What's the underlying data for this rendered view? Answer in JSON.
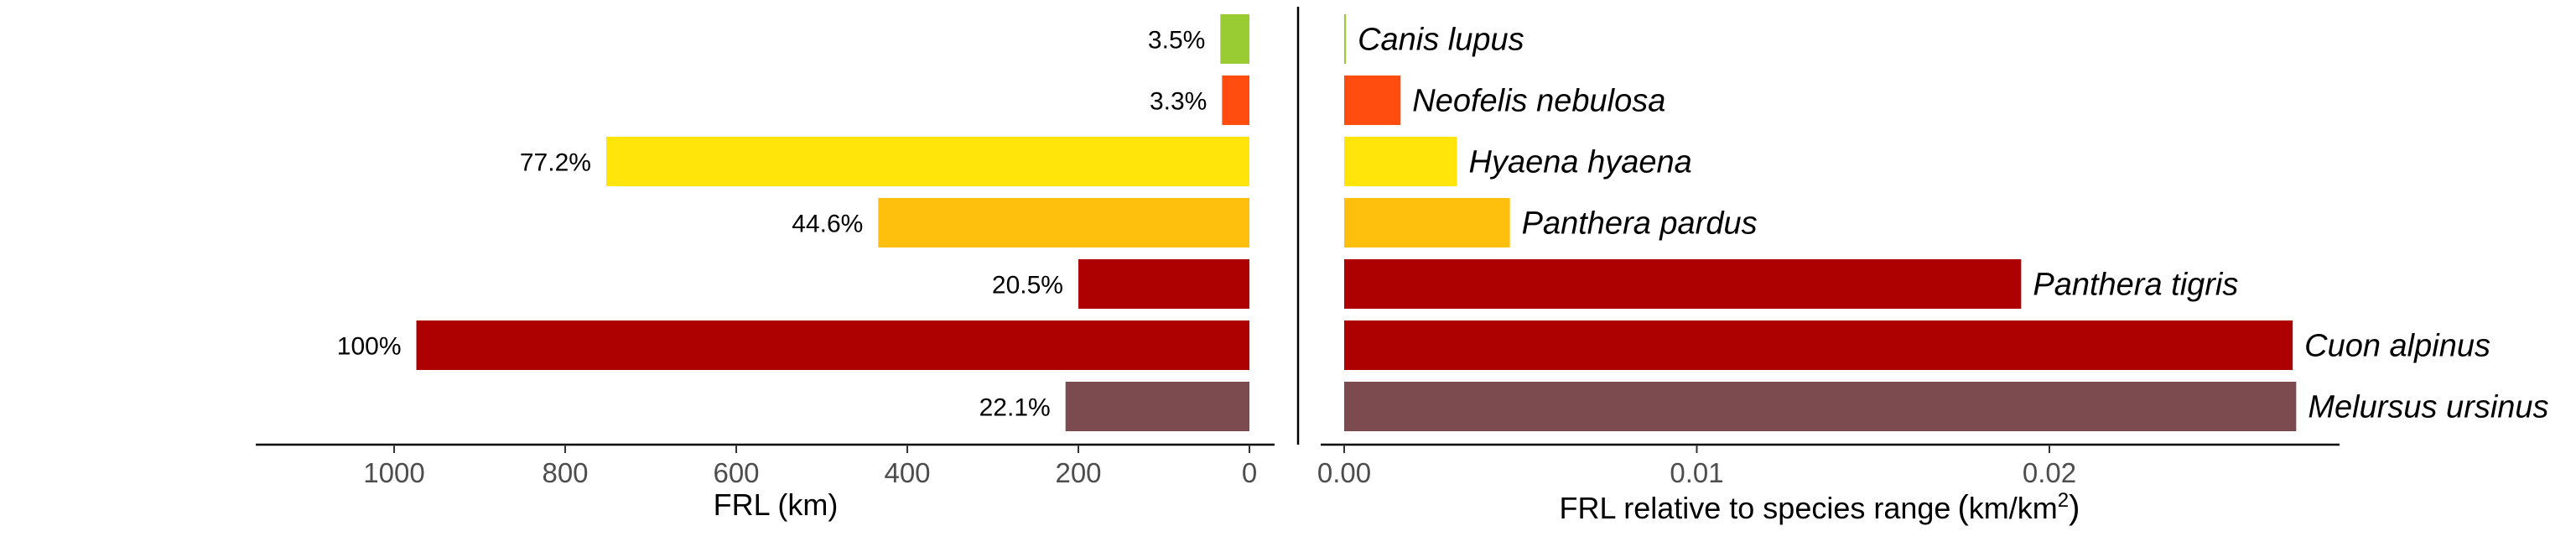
{
  "chart_data": [
    {
      "type": "bar",
      "orientation": "horizontal",
      "direction": "right-to-left",
      "xlabel": "FRL (km)",
      "xlim": [
        1190,
        0
      ],
      "xticks": [
        1000,
        800,
        600,
        400,
        200,
        0
      ],
      "xtick_labels": [
        "1000",
        "800",
        "600",
        "400",
        "200",
        "0"
      ],
      "categories": [
        "Canis lupus",
        "Neofelis nebulosa",
        "Hyaena hyaena",
        "Panthera pardus",
        "Panthera tigris",
        "Cuon alpinus",
        "Melursus ursinus"
      ],
      "values": [
        34,
        32,
        752,
        434,
        200,
        974,
        215
      ],
      "data_labels": [
        "3.5%",
        "3.3%",
        "77.2%",
        "44.6%",
        "20.5%",
        "100%",
        "22.1%"
      ],
      "colors": [
        "#99cc33",
        "#ff4c0f",
        "#ffe50a",
        "#ffbf0c",
        "#ad0000",
        "#ad0000",
        "#7b4b50"
      ],
      "grid": false
    },
    {
      "type": "bar",
      "orientation": "horizontal",
      "xlabel": "FRL relative to species range",
      "xlabel_unit": {
        "open": "(",
        "base": "km/km",
        "sup": "2",
        "close": ")"
      },
      "xlim": [
        0,
        0.0281
      ],
      "xticks": [
        0.0,
        0.01,
        0.02
      ],
      "xtick_labels": [
        "0.00",
        "0.01",
        "0.02"
      ],
      "categories": [
        "Canis lupus",
        "Neofelis nebulosa",
        "Hyaena hyaena",
        "Panthera pardus",
        "Panthera tigris",
        "Cuon alpinus",
        "Melursus ursinus"
      ],
      "values": [
        5e-05,
        0.0016,
        0.0032,
        0.0047,
        0.0192,
        0.0269,
        0.027
      ],
      "colors": [
        "#99cc33",
        "#ff4c0f",
        "#ffe50a",
        "#ffbf0c",
        "#ad0000",
        "#ad0000",
        "#7b4b50"
      ],
      "grid": false
    }
  ]
}
